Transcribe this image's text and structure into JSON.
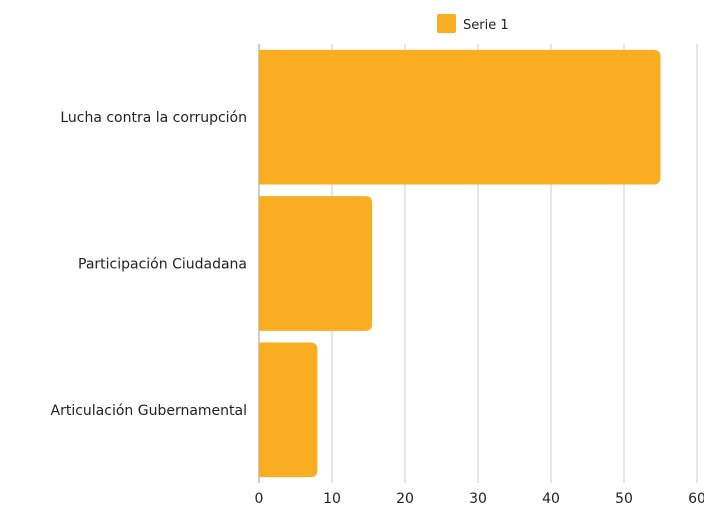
{
  "chart_data": {
    "type": "bar",
    "orientation": "horizontal",
    "categories": [
      "Lucha contra la corrupción",
      "Participación Ciudadana",
      "Articulación Gubernamental"
    ],
    "series": [
      {
        "name": "Serie 1",
        "values": [
          55,
          15.5,
          8
        ]
      }
    ],
    "xlim": [
      0,
      60
    ],
    "xticks": [
      0,
      10,
      20,
      30,
      40,
      50,
      60
    ],
    "grid": true,
    "legend_position": "top",
    "colors": {
      "bar": "#F9AE22",
      "grid": "#cccccc"
    }
  }
}
